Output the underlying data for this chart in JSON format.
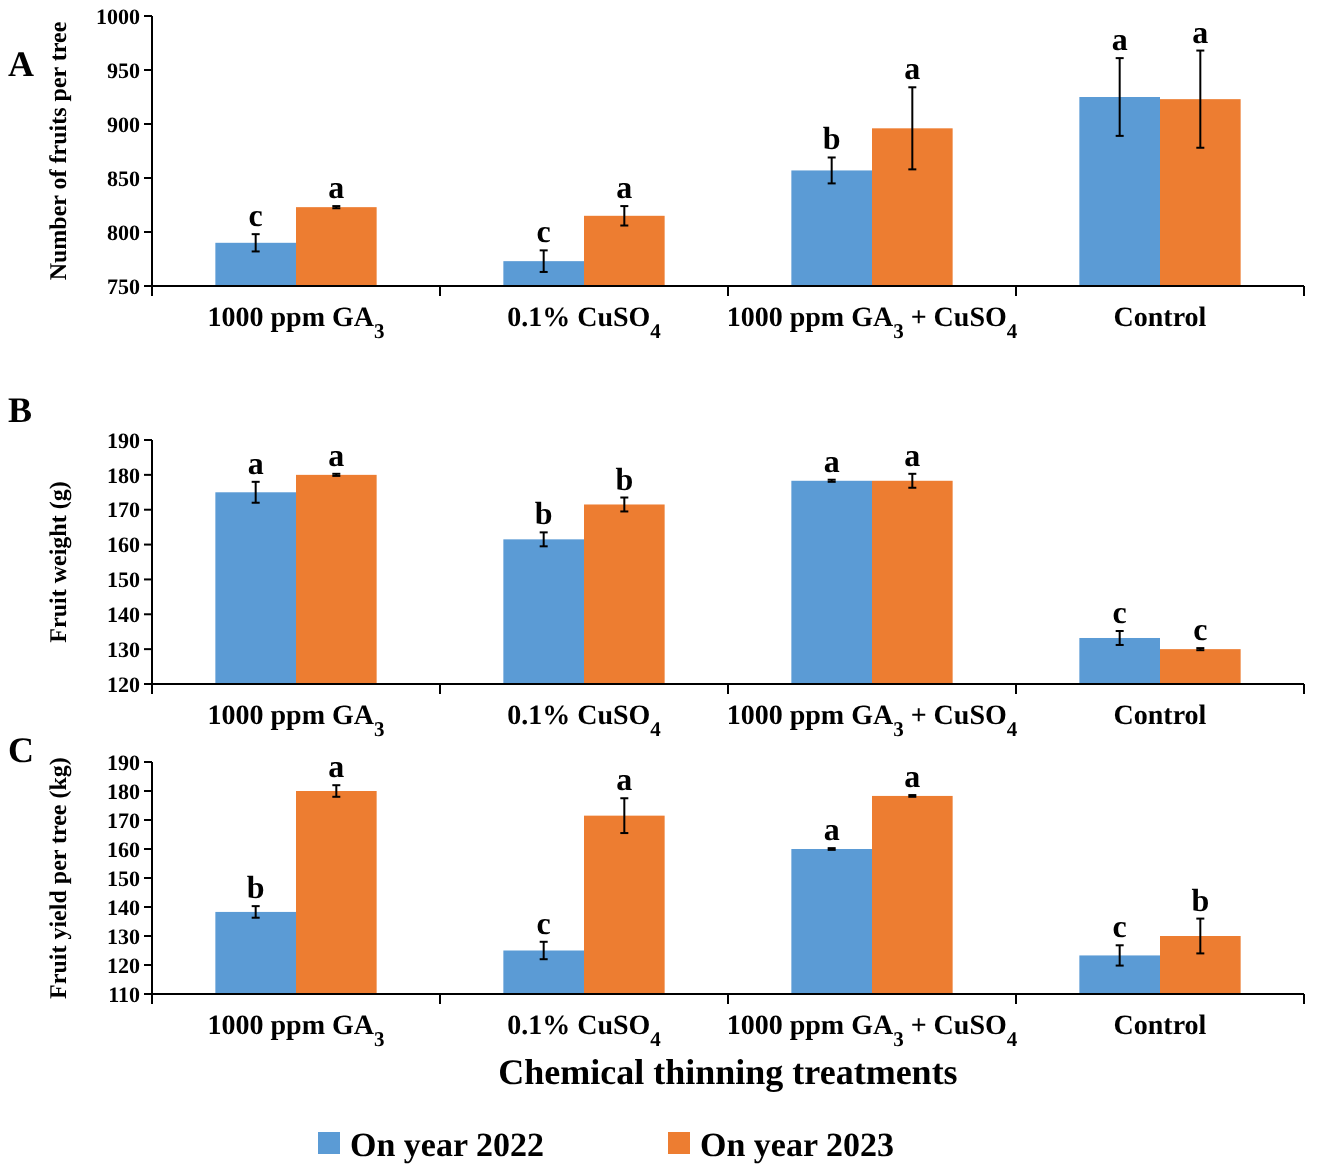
{
  "chart_data": [
    {
      "type": "bar",
      "title": "A",
      "ylabel": "Number of fruits per tree",
      "categories": [
        "1000 ppm GA$_{3}$",
        "0.1% CuSO$_{4}$",
        "1000 ppm GA$_{3}$ + CuSO$_{4}$",
        "Control"
      ],
      "series": [
        {
          "color": "#5b9bd5",
          "values": [
            790,
            773,
            857,
            925
          ],
          "errors": [
            8,
            10,
            12,
            36
          ]
        },
        {
          "color": "#ed7d31",
          "values": [
            823,
            815,
            896,
            923
          ],
          "errors": [
            1,
            9,
            38,
            45
          ]
        }
      ],
      "ylim": [
        750,
        1000
      ],
      "yticks": [
        750,
        800,
        850,
        900,
        950,
        1000
      ],
      "legend": false,
      "annotations": [
        {
          "text": "c",
          "x": "1000 ppm GA$_{3}$",
          "y": 790
        },
        {
          "text": "a",
          "x": "1000 ppm GA$_{3}$",
          "y": 823
        },
        {
          "text": "c",
          "x": "0.1% CuSO$_{4}$",
          "y": 773
        },
        {
          "text": "a",
          "x": "0.1% CuSO$_{4}$",
          "y": 815
        },
        {
          "text": "b",
          "x": "1000 ppm GA$_{3}$ + CuSO$_{4}$",
          "y": 857
        },
        {
          "text": "a",
          "x": "1000 ppm GA$_{3}$ + CuSO$_{4}$",
          "y": 896
        },
        {
          "text": "a",
          "x": "Control",
          "y": 925
        },
        {
          "text": "a",
          "x": "Control",
          "y": 923
        }
      ]
    },
    {
      "type": "bar",
      "title": "B",
      "ylabel": "Fruit weight (g)",
      "categories": [
        "1000 ppm GA$_{3}$",
        "0.1% CuSO$_{4}$",
        "1000 ppm GA$_{3}$ + CuSO$_{4}$",
        "Control"
      ],
      "series": [
        {
          "color": "#5b9bd5",
          "values": [
            175,
            161.5,
            178.3,
            133.2
          ],
          "errors": [
            3,
            2,
            0.3,
            2
          ]
        },
        {
          "color": "#ed7d31",
          "values": [
            180,
            171.5,
            178.3,
            130
          ],
          "errors": [
            0.3,
            2,
            2,
            0.3
          ]
        }
      ],
      "ylim": [
        120,
        190
      ],
      "yticks": [
        120,
        130,
        140,
        150,
        160,
        170,
        180,
        190
      ],
      "legend": false,
      "annotations": [
        {
          "text": "a",
          "x": "1000 ppm GA$_{3}$",
          "y": 175
        },
        {
          "text": "a",
          "x": "1000 ppm GA$_{3}$",
          "y": 180
        },
        {
          "text": "b",
          "x": "0.1% CuSO$_{4}$",
          "y": 161.5
        },
        {
          "text": "b",
          "x": "0.1% CuSO$_{4}$",
          "y": 171.5
        },
        {
          "text": "a",
          "x": "1000 ppm GA$_{3}$ + CuSO$_{4}$",
          "y": 178.3
        },
        {
          "text": "a",
          "x": "1000 ppm GA$_{3}$ + CuSO$_{4}$",
          "y": 178.3
        },
        {
          "text": "c",
          "x": "Control",
          "y": 133.2
        },
        {
          "text": "c",
          "x": "Control",
          "y": 130
        }
      ]
    },
    {
      "type": "bar",
      "title": "C",
      "ylabel": "Fruit yield per tree (kg)",
      "xlabel": "Chemical thinning treatments",
      "categories": [
        "1000 ppm GA$_{3}$",
        "0.1% CuSO$_{4}$",
        "1000 ppm GA$_{3}$ + CuSO$_{4}$",
        "Control"
      ],
      "series": [
        {
          "name": "On year 2022",
          "color": "#5b9bd5",
          "values": [
            138.3,
            125,
            160,
            123.3
          ],
          "errors": [
            2,
            3,
            0.3,
            3.5
          ]
        },
        {
          "name": "On year 2023",
          "color": "#ed7d31",
          "values": [
            180,
            171.5,
            178.3,
            130
          ],
          "errors": [
            2,
            6,
            0.3,
            6
          ]
        }
      ],
      "ylim": [
        110,
        190
      ],
      "yticks": [
        110,
        120,
        130,
        140,
        150,
        160,
        170,
        180,
        190
      ],
      "legend": "bottom",
      "annotations": [
        {
          "text": "b",
          "x": "1000 ppm GA$_{3}$",
          "y": 138.3
        },
        {
          "text": "a",
          "x": "1000 ppm GA$_{3}$",
          "y": 180
        },
        {
          "text": "c",
          "x": "0.1% CuSO$_{4}$",
          "y": 125
        },
        {
          "text": "a",
          "x": "0.1% CuSO$_{4}$",
          "y": 171.5
        },
        {
          "text": "a",
          "x": "1000 ppm GA$_{3}$ + CuSO$_{4}$",
          "y": 160
        },
        {
          "text": "a",
          "x": "1000 ppm GA$_{3}$ + CuSO$_{4}$",
          "y": 178.3
        },
        {
          "text": "c",
          "x": "Control",
          "y": 123.3
        },
        {
          "text": "b",
          "x": "Control",
          "y": 130
        }
      ]
    }
  ]
}
